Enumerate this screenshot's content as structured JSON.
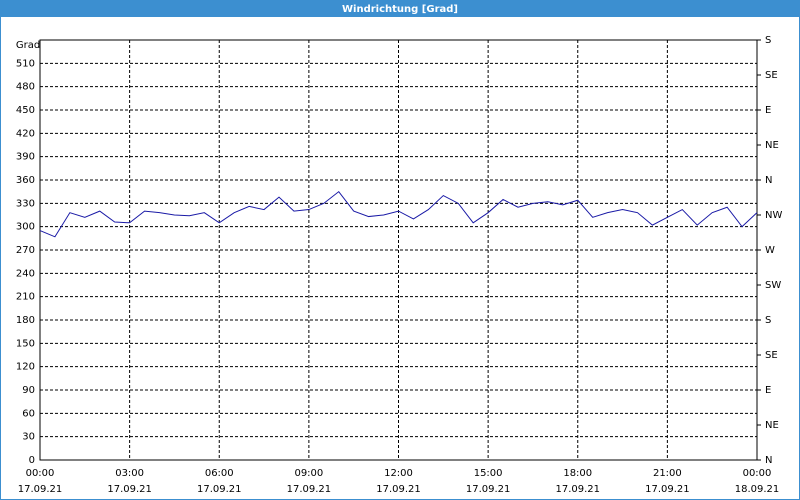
{
  "chart_data": {
    "type": "line",
    "title": "Windrichtung [Grad]",
    "ylabel": "Grad",
    "x": [
      0,
      0.5,
      1,
      1.5,
      2,
      2.5,
      3,
      3.5,
      4,
      4.5,
      5,
      5.5,
      6,
      6.5,
      7,
      7.5,
      8,
      8.5,
      9,
      9.5,
      10,
      10.5,
      11,
      11.5,
      12,
      12.5,
      13,
      13.5,
      14,
      14.5,
      15,
      15.5,
      16,
      16.5,
      17,
      17.5,
      18,
      18.5,
      19,
      19.5,
      20,
      20.5,
      21,
      21.5,
      22,
      22.5,
      23,
      23.5,
      24
    ],
    "series": [
      {
        "name": "Windrichtung",
        "color": "#1a1aa6",
        "values": [
          295,
          287,
          318,
          312,
          320,
          306,
          305,
          320,
          318,
          315,
          314,
          318,
          305,
          318,
          326,
          322,
          338,
          320,
          322,
          330,
          345,
          320,
          313,
          315,
          320,
          310,
          322,
          340,
          330,
          305,
          318,
          335,
          325,
          330,
          332,
          328,
          334,
          312,
          318,
          322,
          318,
          302,
          312,
          322,
          302,
          318,
          325,
          300,
          318
        ]
      }
    ],
    "xlim": [
      0,
      24
    ],
    "xticks": [
      {
        "value": 0,
        "label": "00:00"
      },
      {
        "value": 3,
        "label": "03:00"
      },
      {
        "value": 6,
        "label": "06:00"
      },
      {
        "value": 9,
        "label": "09:00"
      },
      {
        "value": 12,
        "label": "12:00"
      },
      {
        "value": 15,
        "label": "15:00"
      },
      {
        "value": 18,
        "label": "18:00"
      },
      {
        "value": 21,
        "label": "21:00"
      },
      {
        "value": 24,
        "label": "00:00"
      }
    ],
    "xtick_dates": [
      "17.09.21",
      "17.09.21",
      "17.09.21",
      "17.09.21",
      "17.09.21",
      "17.09.21",
      "17.09.21",
      "17.09.21",
      "18.09.21"
    ],
    "ylim": [
      0,
      540
    ],
    "yticks": [
      0,
      30,
      60,
      90,
      120,
      150,
      180,
      210,
      240,
      270,
      300,
      330,
      360,
      390,
      420,
      450,
      480,
      510
    ],
    "y2lim": [
      0,
      540
    ],
    "y2ticks": [
      {
        "value": 0,
        "label": "N"
      },
      {
        "value": 45,
        "label": "NE"
      },
      {
        "value": 90,
        "label": "E"
      },
      {
        "value": 135,
        "label": "SE"
      },
      {
        "value": 180,
        "label": "S"
      },
      {
        "value": 225,
        "label": "SW"
      },
      {
        "value": 270,
        "label": "W"
      },
      {
        "value": 315,
        "label": "NW"
      },
      {
        "value": 360,
        "label": "N"
      },
      {
        "value": 405,
        "label": "NE"
      },
      {
        "value": 450,
        "label": "E"
      },
      {
        "value": 495,
        "label": "SE"
      },
      {
        "value": 540,
        "label": "S"
      }
    ],
    "grid": true
  }
}
